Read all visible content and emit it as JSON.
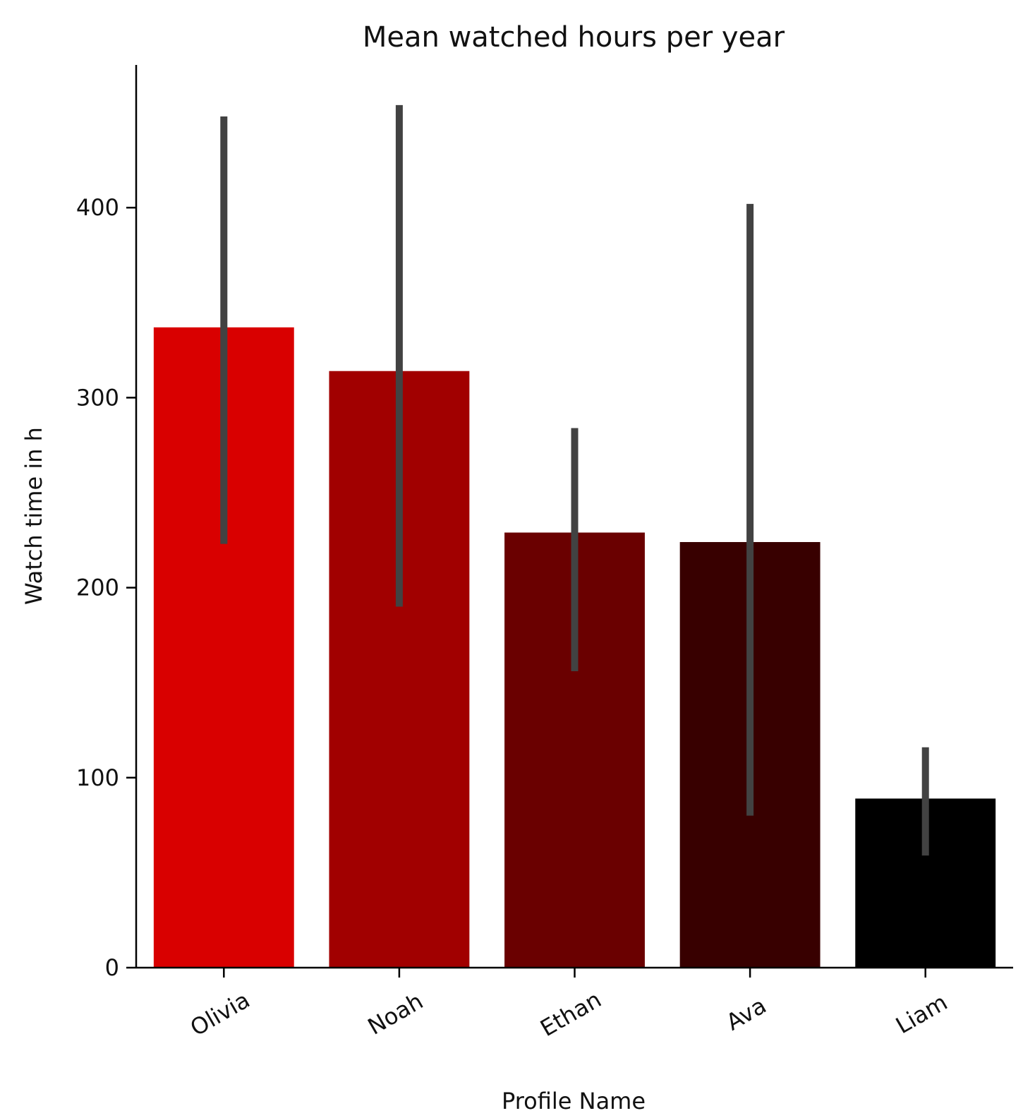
{
  "chart_data": {
    "type": "bar",
    "title": "Mean watched hours per year",
    "xlabel": "Profile Name",
    "ylabel": "Watch time in h",
    "categories": [
      "Olivia",
      "Noah",
      "Ethan",
      "Ava",
      "Liam"
    ],
    "values": [
      337,
      314,
      229,
      224,
      89
    ],
    "error_low": [
      223,
      190,
      156,
      80,
      59
    ],
    "error_high": [
      448,
      454,
      284,
      402,
      116
    ],
    "bar_colors": [
      "#d90000",
      "#a10000",
      "#6a0000",
      "#380000",
      "#000000"
    ],
    "error_bar_color": "#424242",
    "ylim": [
      0,
      475
    ],
    "yticks": [
      0,
      100,
      200,
      300,
      400
    ],
    "x_tick_rotation": -30,
    "grid": false,
    "legend": "none"
  }
}
